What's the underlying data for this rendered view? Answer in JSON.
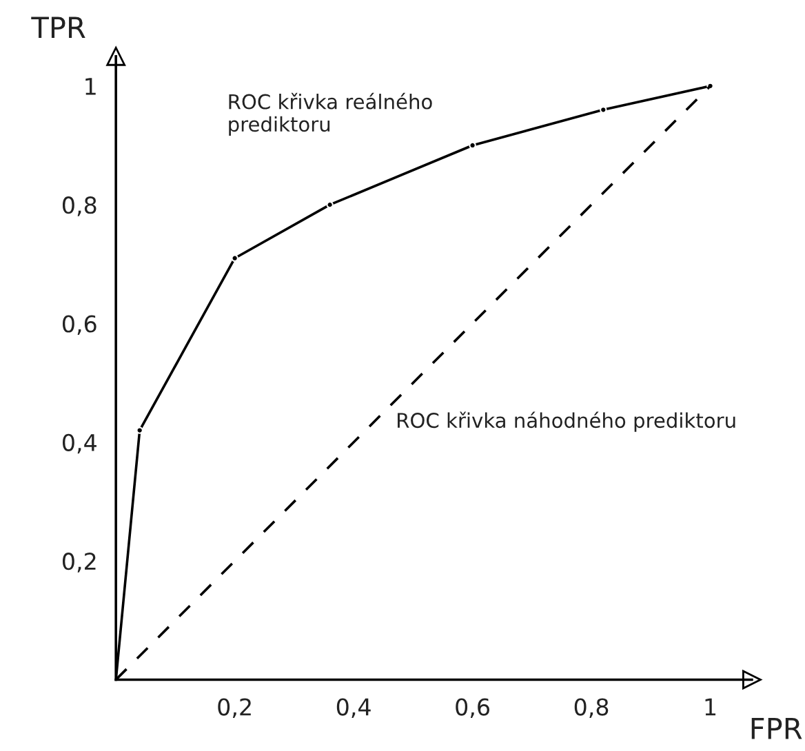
{
  "chart_data": {
    "type": "line",
    "xlabel": "FPR",
    "ylabel": "TPR",
    "series": [
      {
        "color": "#000000",
        "marker": "circle",
        "line_style": "solid",
        "x": [
          0,
          0.04,
          0.2,
          0.36,
          0.6,
          0.82,
          1
        ],
        "values": [
          0,
          0.42,
          0.71,
          0.8,
          0.9,
          0.96,
          1
        ]
      },
      {
        "color": "#000000",
        "marker": "none",
        "line_style": "dashed",
        "x": [
          0,
          1
        ],
        "values": [
          0,
          1
        ]
      }
    ],
    "xlim": [
      0,
      1.07
    ],
    "ylim": [
      0,
      1.05
    ],
    "xticks": [
      {
        "value": 0.2,
        "label": "0,2"
      },
      {
        "value": 0.4,
        "label": "0,4"
      },
      {
        "value": 0.6,
        "label": "0,6"
      },
      {
        "value": 0.8,
        "label": "0,8"
      },
      1
    ],
    "yticks": [
      {
        "value": 0.2,
        "label": "0,2"
      },
      {
        "value": 0.4,
        "label": "0,4"
      },
      {
        "value": 0.6,
        "label": "0,6"
      },
      {
        "value": 0.8,
        "label": "0,8"
      },
      1
    ],
    "grid": false,
    "legend": false,
    "annotations": [
      "ROC křivka reálného\nprediktoru",
      "ROC křivka náhodného prediktoru"
    ]
  }
}
